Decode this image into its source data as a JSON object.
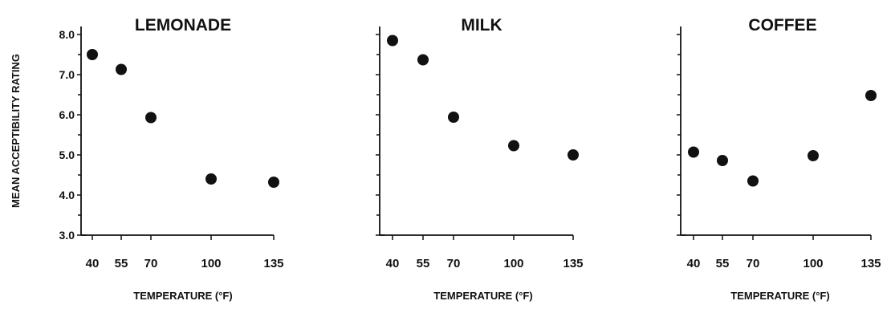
{
  "chart_data": [
    {
      "type": "scatter",
      "title": "LEMONADE",
      "xlabel": "TEMPERATURE (°F)",
      "ylabel": "MEAN ACCEPTIBILITY RATING",
      "x_ticks": [
        40,
        55,
        70,
        100,
        135
      ],
      "y_ticks": [
        "3.0",
        "4.0",
        "5.0",
        "6.0",
        "7.0",
        "8.0"
      ],
      "ylim": [
        3.0,
        8.2
      ],
      "points": [
        {
          "x": 40,
          "y": 7.5
        },
        {
          "x": 55,
          "y": 7.13
        },
        {
          "x": 70,
          "y": 5.93
        },
        {
          "x": 100,
          "y": 4.4
        },
        {
          "x": 135,
          "y": 4.32
        }
      ]
    },
    {
      "type": "scatter",
      "title": "MILK",
      "xlabel": "TEMPERATURE (°F)",
      "x_ticks": [
        40,
        55,
        70,
        100,
        135
      ],
      "ylim": [
        3.0,
        8.2
      ],
      "points": [
        {
          "x": 40,
          "y": 7.85
        },
        {
          "x": 55,
          "y": 7.37
        },
        {
          "x": 70,
          "y": 5.94
        },
        {
          "x": 100,
          "y": 5.23
        },
        {
          "x": 135,
          "y": 5.0
        }
      ]
    },
    {
      "type": "scatter",
      "title": "COFFEE",
      "xlabel": "TEMPERATURE (°F)",
      "x_ticks": [
        40,
        55,
        70,
        100,
        135
      ],
      "ylim": [
        3.0,
        8.2
      ],
      "points": [
        {
          "x": 40,
          "y": 5.07
        },
        {
          "x": 55,
          "y": 4.86
        },
        {
          "x": 70,
          "y": 4.35
        },
        {
          "x": 100,
          "y": 4.98
        },
        {
          "x": 135,
          "y": 6.48
        }
      ]
    }
  ]
}
